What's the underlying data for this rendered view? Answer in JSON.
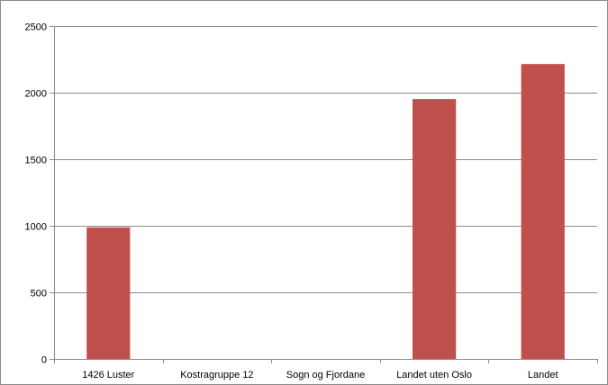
{
  "chart_data": {
    "type": "bar",
    "categories": [
      "1426 Luster",
      "Kostragruppe 12",
      "Sogn og Fjordane",
      "Landet uten Oslo",
      "Landet"
    ],
    "values": [
      988,
      null,
      null,
      1952,
      2215
    ],
    "ylim": [
      0,
      2500
    ],
    "yticks": [
      0,
      500,
      1000,
      1500,
      2000,
      2500
    ],
    "title": "",
    "xlabel": "",
    "ylabel": "",
    "grid": true,
    "legend": "none",
    "bar_color": "#c0504d"
  }
}
